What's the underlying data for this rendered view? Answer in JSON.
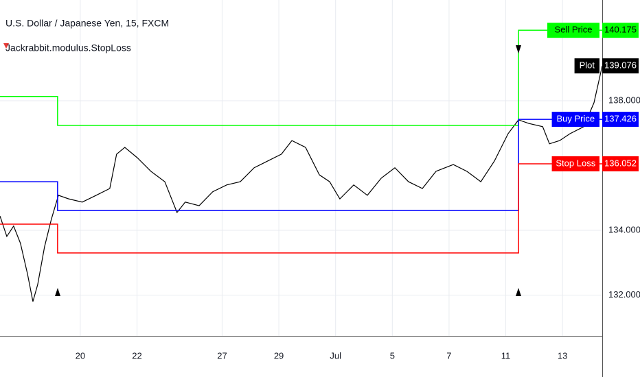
{
  "chart_data": {
    "type": "line",
    "title": "U.S. Dollar / Japanese Yen, 15, FXCM",
    "subtitle": "Jackrabbit.modulus.StopLoss",
    "xlim": [
      -2.83,
      18.4
    ],
    "xticks": [
      {
        "value": 0,
        "label": "20"
      },
      {
        "value": 2,
        "label": "22"
      },
      {
        "value": 5,
        "label": "27"
      },
      {
        "value": 7,
        "label": "29"
      },
      {
        "value": 9,
        "label": "Jul"
      },
      {
        "value": 11,
        "label": "5"
      },
      {
        "value": 13,
        "label": "7"
      },
      {
        "value": 15,
        "label": "11"
      },
      {
        "value": 17,
        "label": "13"
      }
    ],
    "ylim": [
      130.74,
      141.11
    ],
    "yticks": [
      {
        "value": 132,
        "label": "132.000"
      },
      {
        "value": 134,
        "label": "134.000"
      },
      {
        "value": 138,
        "label": "138.000"
      }
    ],
    "grid": true,
    "series": [
      {
        "name": "Plot",
        "color": "#000000",
        "x": [
          -2.83,
          -2.59,
          -2.35,
          -2.11,
          -1.86,
          -1.67,
          -1.5,
          -1.26,
          -1.02,
          -0.77,
          -0.41,
          0.07,
          0.56,
          1.04,
          1.28,
          1.57,
          2.01,
          2.49,
          2.98,
          3.41,
          3.7,
          4.19,
          4.67,
          5.16,
          5.64,
          6.13,
          6.61,
          7.09,
          7.46,
          7.94,
          8.43,
          8.79,
          9.15,
          9.64,
          10.12,
          10.61,
          11.09,
          11.57,
          12.06,
          12.54,
          13.15,
          13.63,
          14.12,
          14.6,
          15.08,
          15.45,
          15.81,
          16.3,
          16.54,
          16.9,
          17.26,
          17.75,
          18.11,
          18.4
        ],
        "values": [
          134.44,
          133.81,
          134.13,
          133.6,
          132.65,
          131.8,
          132.33,
          133.49,
          134.34,
          135.08,
          134.97,
          134.87,
          135.08,
          135.29,
          136.35,
          136.56,
          136.24,
          135.82,
          135.5,
          134.55,
          134.87,
          134.76,
          135.19,
          135.4,
          135.5,
          135.93,
          136.14,
          136.35,
          136.77,
          136.56,
          135.71,
          135.5,
          134.97,
          135.4,
          135.08,
          135.61,
          135.93,
          135.5,
          135.29,
          135.82,
          136.03,
          135.82,
          135.5,
          136.14,
          136.98,
          137.41,
          137.3,
          137.2,
          136.67,
          136.77,
          136.98,
          137.2,
          137.94,
          139.076
        ]
      },
      {
        "name": "Sell Price",
        "color": "#00ff00",
        "x": [
          -2.83,
          -0.8,
          -0.8,
          15.45,
          15.45,
          18.4
        ],
        "values": [
          138.13,
          138.13,
          137.24,
          137.24,
          140.175,
          140.175
        ]
      },
      {
        "name": "Buy Price",
        "color": "#0000ff",
        "x": [
          -2.83,
          -0.8,
          -0.8,
          15.45,
          15.45,
          18.4
        ],
        "values": [
          135.5,
          135.5,
          134.61,
          134.61,
          137.426,
          137.426
        ]
      },
      {
        "name": "Stop Loss",
        "color": "#ff0000",
        "x": [
          -2.83,
          -0.8,
          -0.8,
          15.45,
          15.45,
          18.4
        ],
        "values": [
          134.19,
          134.19,
          133.3,
          133.3,
          136.052,
          136.052
        ]
      }
    ]
  }
}
